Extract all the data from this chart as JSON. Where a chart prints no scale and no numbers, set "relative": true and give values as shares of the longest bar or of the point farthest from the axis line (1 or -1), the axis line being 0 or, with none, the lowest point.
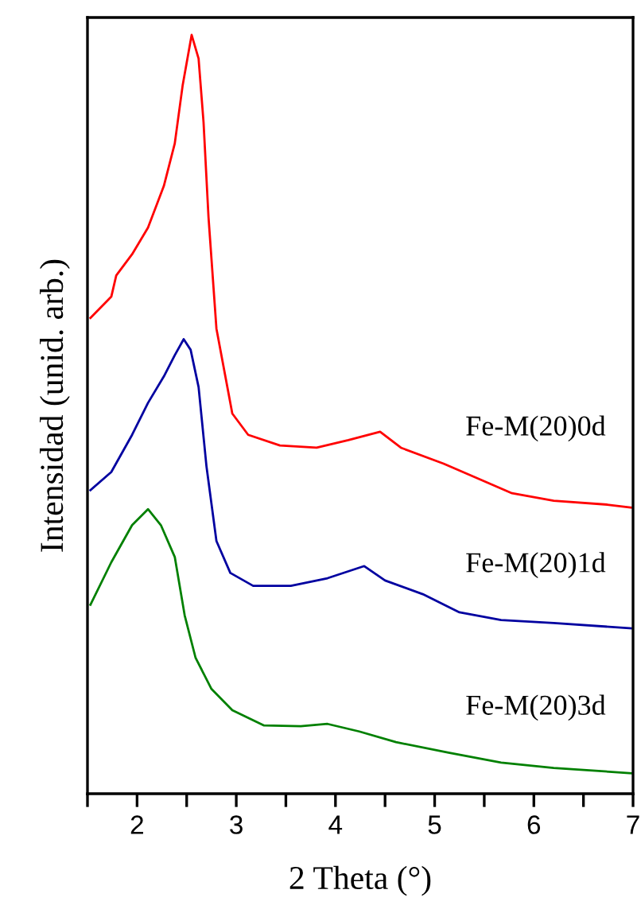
{
  "chart_data": {
    "type": "line",
    "xlabel": "2 Theta (°)",
    "ylabel": "Intensidad (unid. arb.)",
    "relative": true,
    "xlim": [
      1.5,
      7
    ],
    "xticks": [
      {
        "value": 1.5,
        "label": null
      },
      2,
      {
        "value": 2.5,
        "label": null
      },
      3,
      {
        "value": 3.5,
        "label": null
      },
      4,
      {
        "value": 4.5,
        "label": null
      },
      5,
      {
        "value": 5.5,
        "label": null
      },
      6,
      {
        "value": 6.5,
        "label": null
      },
      7
    ],
    "grid": false,
    "legend": false,
    "marker": "none",
    "line_style": "solid",
    "series": [
      {
        "name": "Fe-M(20)0d",
        "color": "#ff0000",
        "x": [
          1.53,
          1.74,
          1.79,
          1.95,
          2.11,
          2.27,
          2.38,
          2.46,
          2.55,
          2.62,
          2.67,
          2.72,
          2.8,
          2.91,
          2.96,
          3.12,
          3.44,
          3.81,
          4.13,
          4.45,
          4.66,
          5.09,
          5.41,
          5.78,
          6.2,
          6.74,
          6.98
        ],
        "values": [
          0.627,
          0.655,
          0.683,
          0.711,
          0.746,
          0.801,
          0.857,
          0.934,
          1.0,
          0.969,
          0.885,
          0.76,
          0.613,
          0.536,
          0.501,
          0.473,
          0.459,
          0.456,
          0.466,
          0.477,
          0.456,
          0.435,
          0.417,
          0.396,
          0.386,
          0.381,
          0.377
        ]
      },
      {
        "name": "Fe-M(20)1d",
        "color": "#0000a0",
        "x": [
          1.53,
          1.74,
          1.95,
          2.11,
          2.27,
          2.38,
          2.47,
          2.54,
          2.62,
          2.7,
          2.8,
          2.94,
          3.17,
          3.55,
          3.92,
          4.29,
          4.5,
          4.88,
          5.25,
          5.67,
          6.2,
          6.98
        ],
        "values": [
          0.4,
          0.424,
          0.473,
          0.515,
          0.55,
          0.578,
          0.599,
          0.585,
          0.536,
          0.431,
          0.333,
          0.291,
          0.274,
          0.274,
          0.284,
          0.3,
          0.281,
          0.263,
          0.239,
          0.229,
          0.225,
          0.218
        ]
      },
      {
        "name": "Fe-M(20)3d",
        "color": "#008000",
        "x": [
          1.53,
          1.74,
          1.95,
          2.11,
          2.24,
          2.38,
          2.48,
          2.59,
          2.75,
          2.96,
          3.28,
          3.65,
          3.92,
          4.24,
          4.61,
          5.14,
          5.67,
          6.2,
          6.98
        ],
        "values": [
          0.249,
          0.305,
          0.354,
          0.375,
          0.354,
          0.312,
          0.235,
          0.179,
          0.138,
          0.11,
          0.09,
          0.089,
          0.092,
          0.082,
          0.068,
          0.054,
          0.041,
          0.034,
          0.027
        ]
      }
    ]
  }
}
